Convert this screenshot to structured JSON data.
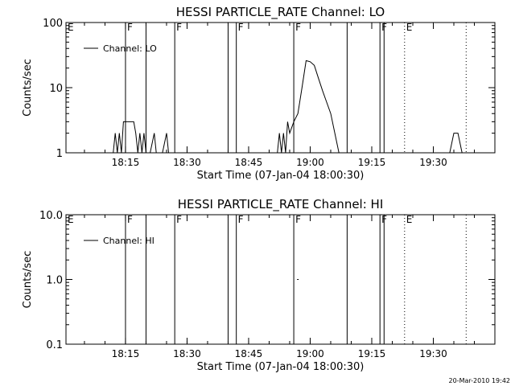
{
  "footer_text": "20-Mar-2010 19:42",
  "colors": {
    "background": "#ffffff",
    "foreground": "#000000"
  },
  "chart_data": [
    {
      "type": "line",
      "title": "HESSI PARTICLE_RATE Channel: LO",
      "xlabel": "Start Time (07-Jan-04 18:00:30)",
      "ylabel": "Counts/sec",
      "y_scale": "log",
      "ylim": [
        1,
        100
      ],
      "xlim": [
        "18:00:30",
        "19:45:00"
      ],
      "x_ticks": [
        "18:15",
        "18:30",
        "18:45",
        "19:00",
        "19:15",
        "19:30"
      ],
      "y_ticks": [
        "1",
        "10",
        "100"
      ],
      "legend": {
        "entries": [
          "Channel: LO"
        ],
        "placement": "top-left"
      },
      "event_markers": [
        {
          "label": "F",
          "times": [
            "18:15",
            "18:20",
            "18:27"
          ],
          "style": "solid"
        },
        {
          "label": "F",
          "times": [
            "18:40",
            "18:42"
          ],
          "style": "solid"
        },
        {
          "label": "F",
          "times": [
            "18:56",
            "19:09"
          ],
          "style": "solid"
        },
        {
          "label": "F",
          "times": [
            "19:17",
            "19:18"
          ],
          "style": "solid"
        },
        {
          "label": "E",
          "times": [
            "19:23",
            "19:38"
          ],
          "style": "dotted"
        }
      ],
      "flag_labels": [
        {
          "text": "E",
          "time": "18:00:30"
        },
        {
          "text": "F",
          "time": "18:15"
        },
        {
          "text": "F",
          "time": "18:27"
        },
        {
          "text": "F",
          "time": "18:42"
        },
        {
          "text": "F",
          "time": "18:56"
        },
        {
          "text": "F",
          "time": "19:17"
        },
        {
          "text": "E",
          "time": "19:23"
        }
      ],
      "series": [
        {
          "name": "Channel: LO",
          "x": [
            "18:12",
            "18:12:30",
            "18:13",
            "18:13:30",
            "18:14",
            "18:14:30",
            "18:15",
            "18:16",
            "18:17",
            "18:17:30",
            "18:18",
            "18:18:30",
            "18:19",
            "18:19:30",
            "18:20",
            "18:21",
            "18:22",
            "18:22:30",
            "18:23",
            "18:24",
            "18:25",
            "18:25:30",
            "18:26",
            "18:52",
            "18:52:30",
            "18:53",
            "18:53:30",
            "18:54",
            "18:54:30",
            "18:55",
            "18:56",
            "18:57",
            "18:58",
            "18:59",
            "19:00",
            "19:01",
            "19:02",
            "19:03",
            "19:04",
            "19:05",
            "19:06",
            "19:07",
            "19:08",
            "19:09",
            "19:34",
            "19:35",
            "19:36",
            "19:37"
          ],
          "y": [
            1,
            2,
            1,
            2,
            1,
            3,
            3,
            3,
            3,
            2,
            1,
            2,
            1,
            2,
            1,
            1,
            2,
            1,
            1,
            1,
            2,
            1,
            1,
            1,
            2,
            1,
            2,
            1,
            3,
            2,
            3,
            4,
            10,
            26,
            25,
            22,
            14,
            9,
            6,
            4,
            2,
            1,
            1,
            1,
            1,
            2,
            2,
            1
          ]
        }
      ]
    },
    {
      "type": "line",
      "title": "HESSI PARTICLE_RATE Channel: HI",
      "xlabel": "Start Time (07-Jan-04 18:00:30)",
      "ylabel": "Counts/sec",
      "y_scale": "log",
      "ylim": [
        0.1,
        10
      ],
      "xlim": [
        "18:00:30",
        "19:45:00"
      ],
      "x_ticks": [
        "18:15",
        "18:30",
        "18:45",
        "19:00",
        "19:15",
        "19:30"
      ],
      "y_ticks": [
        "0.1",
        "1.0",
        "10.0"
      ],
      "legend": {
        "entries": [
          "Channel: HI"
        ],
        "placement": "top-left"
      },
      "event_markers": [
        {
          "label": "F",
          "times": [
            "18:15",
            "18:20",
            "18:27"
          ],
          "style": "solid"
        },
        {
          "label": "F",
          "times": [
            "18:40",
            "18:42"
          ],
          "style": "solid"
        },
        {
          "label": "F",
          "times": [
            "18:56",
            "19:09"
          ],
          "style": "solid"
        },
        {
          "label": "F",
          "times": [
            "19:17",
            "19:18"
          ],
          "style": "solid"
        },
        {
          "label": "E",
          "times": [
            "19:23",
            "19:38"
          ],
          "style": "dotted"
        }
      ],
      "flag_labels": [
        {
          "text": "E",
          "time": "18:00:30"
        },
        {
          "text": "F",
          "time": "18:15"
        },
        {
          "text": "F",
          "time": "18:27"
        },
        {
          "text": "F",
          "time": "18:42"
        },
        {
          "text": "F",
          "time": "18:56"
        },
        {
          "text": "F",
          "time": "19:17"
        },
        {
          "text": "E",
          "time": "19:23"
        }
      ],
      "series": [
        {
          "name": "Channel: HI",
          "x": [
            "18:57"
          ],
          "y": [
            1.0
          ]
        }
      ]
    }
  ]
}
